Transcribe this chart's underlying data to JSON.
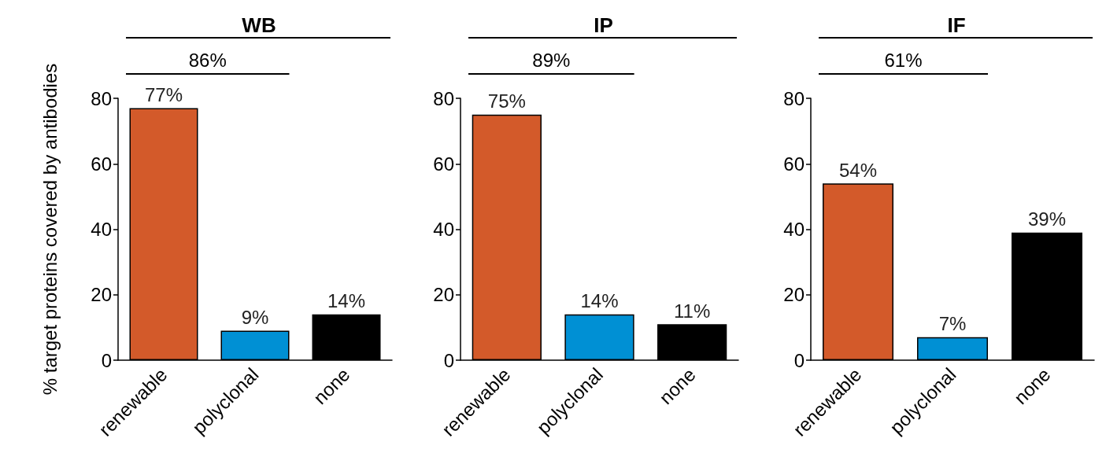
{
  "chart_data": [
    {
      "type": "bar",
      "title": "WB",
      "ylabel": "% target proteins covered by antibodies",
      "categories": [
        "renewable",
        "polyclonal",
        "none"
      ],
      "values": [
        77,
        9,
        14
      ],
      "colors": [
        "#d35a2a",
        "#0090d4",
        "#000000"
      ],
      "value_labels": [
        "77%",
        "9%",
        "14%"
      ],
      "ylim": [
        0,
        80
      ],
      "yticks": [
        0,
        20,
        40,
        60,
        80
      ],
      "grid": false,
      "annotations": [
        "86%"
      ]
    },
    {
      "type": "bar",
      "title": "IP",
      "categories": [
        "renewable",
        "polyclonal",
        "none"
      ],
      "values": [
        75,
        14,
        11
      ],
      "colors": [
        "#d35a2a",
        "#0090d4",
        "#000000"
      ],
      "value_labels": [
        "75%",
        "14%",
        "11%"
      ],
      "ylim": [
        0,
        80
      ],
      "yticks": [
        0,
        20,
        40,
        60,
        80
      ],
      "grid": false,
      "annotations": [
        "89%"
      ]
    },
    {
      "type": "bar",
      "title": "IF",
      "categories": [
        "renewable",
        "polyclonal",
        "none"
      ],
      "values": [
        54,
        7,
        39
      ],
      "colors": [
        "#d35a2a",
        "#0090d4",
        "#000000"
      ],
      "value_labels": [
        "54%",
        "7%",
        "39%"
      ],
      "ylim": [
        0,
        80
      ],
      "yticks": [
        0,
        20,
        40,
        60,
        80
      ],
      "grid": false,
      "annotations": [
        "61%"
      ]
    }
  ]
}
